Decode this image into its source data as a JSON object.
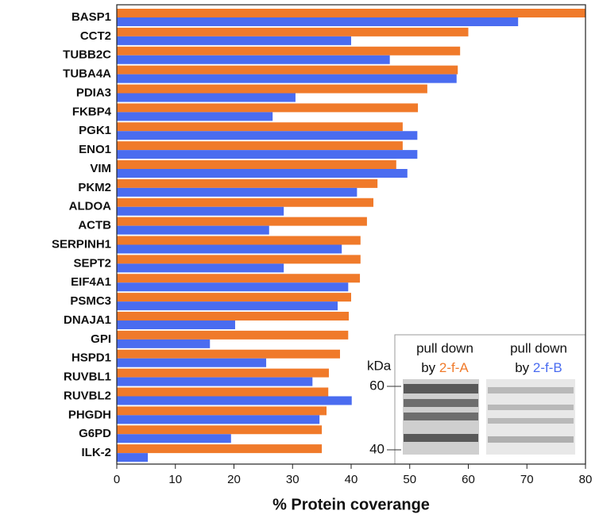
{
  "chart_data": {
    "type": "bar",
    "orientation": "horizontal",
    "categories": [
      "BASP1",
      "CCT2",
      "TUBB2C",
      "TUBA4A",
      "PDIA3",
      "FKBP4",
      "PGK1",
      "ENO1",
      "VIM",
      "PKM2",
      "ALDOA",
      "ACTB",
      "SERPINH1",
      "SEPT2",
      "EIF4A1",
      "PSMC3",
      "DNAJA1",
      "GPI",
      "HSPD1",
      "RUVBL1",
      "RUVBL2",
      "PHGDH",
      "G6PD",
      "ILK-2"
    ],
    "series": [
      {
        "color": "#f07a2a",
        "values": [
          80,
          60,
          58.6,
          58.2,
          53,
          51.4,
          48.8,
          48.8,
          47.7,
          44.5,
          43.8,
          42.7,
          41.6,
          41.6,
          41.5,
          40,
          39.6,
          39.5,
          38.1,
          36.2,
          36.1,
          35.8,
          35,
          35
        ]
      },
      {
        "color": "#4a6cf0",
        "values": [
          68.5,
          40,
          46.6,
          58,
          30.5,
          26.6,
          51.3,
          51.3,
          49.6,
          41,
          28.5,
          26,
          38.4,
          28.5,
          39.5,
          37.7,
          20.2,
          15.9,
          25.5,
          33.4,
          40.1,
          34.6,
          19.5,
          5.3
        ]
      }
    ],
    "xlim": [
      0,
      80
    ],
    "xticks": [
      0,
      10,
      20,
      30,
      40,
      50,
      60,
      70,
      80
    ],
    "xlabel": "% Protein coverange",
    "inset": {
      "lanes": [
        {
          "line1": "pull down",
          "line2": "by",
          "probe": "2-f-A",
          "probe_color": "#f07a2a"
        },
        {
          "line1": "pull down",
          "line2": "by",
          "probe": "2-f-B",
          "probe_color": "#4a6cf0"
        }
      ],
      "unit": "kDa",
      "markers": [
        60,
        40
      ]
    }
  }
}
